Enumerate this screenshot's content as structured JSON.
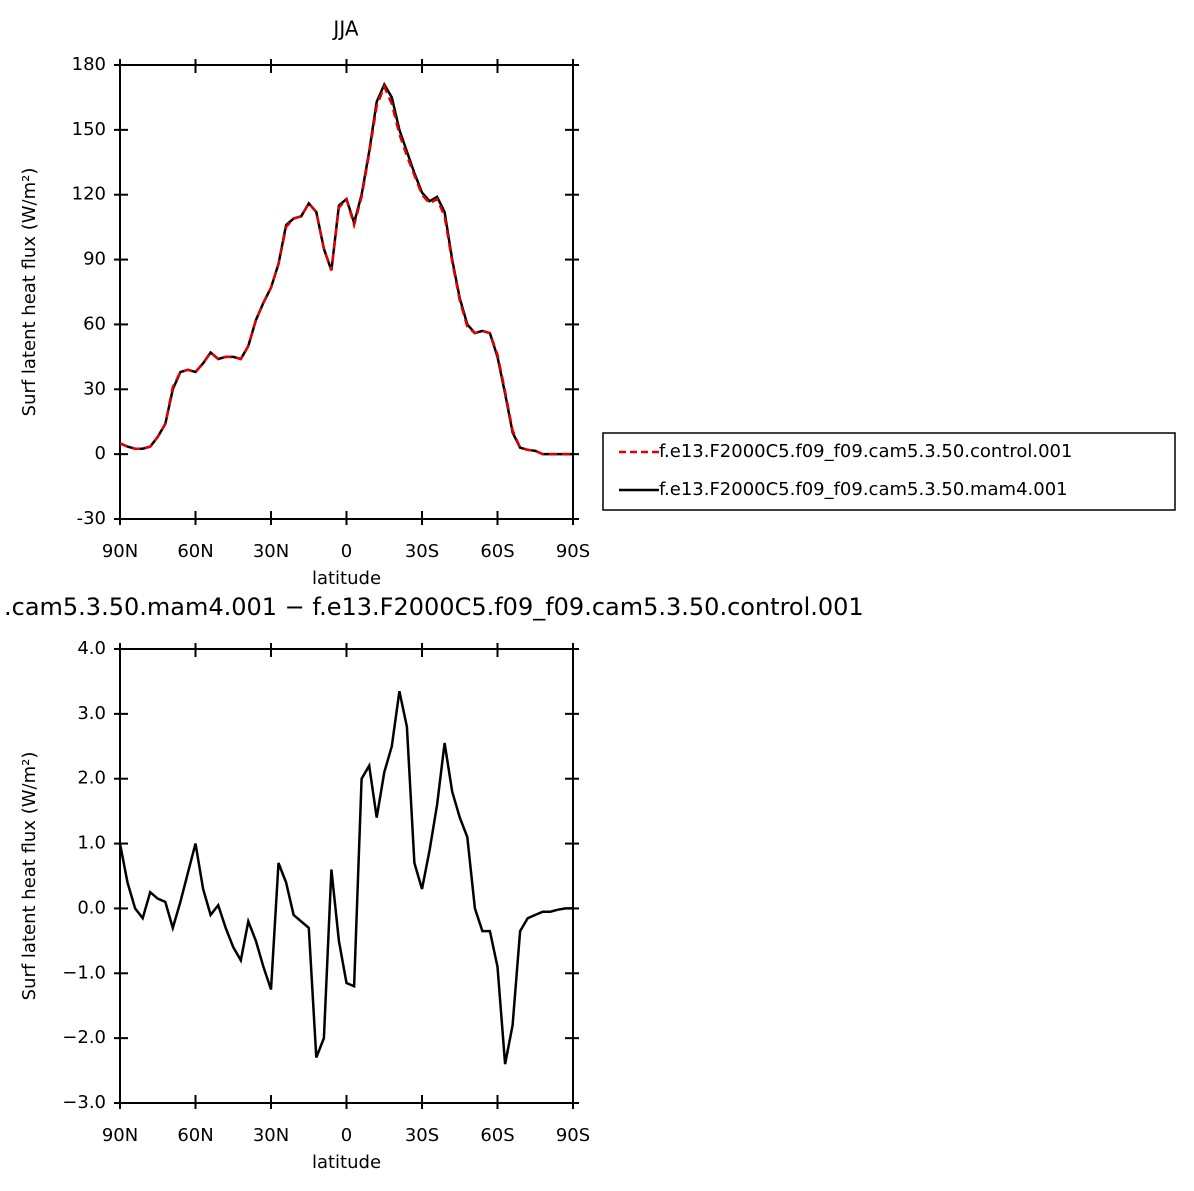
{
  "chart_data": [
    {
      "type": "line",
      "title": "JJA",
      "x_label": "latitude",
      "y_label": "Surf latent heat flux (W/m²)",
      "x": [
        90,
        87,
        84,
        81,
        78,
        75,
        72,
        69,
        66,
        63,
        60,
        57,
        54,
        51,
        48,
        45,
        42,
        39,
        36,
        33,
        30,
        27,
        24,
        21,
        18,
        15,
        12,
        9,
        6,
        3,
        0,
        -3,
        -6,
        -9,
        -12,
        -15,
        -18,
        -21,
        -24,
        -27,
        -30,
        -33,
        -36,
        -39,
        -42,
        -45,
        -48,
        -51,
        -54,
        -57,
        -60,
        -63,
        -66,
        -69,
        -72,
        -75,
        -78,
        -81,
        -84,
        -87,
        -90
      ],
      "series": [
        {
          "name": "f.e13.F2000C5.f09_f09.cam5.3.50.control.001",
          "color": "#e00000",
          "line_style": "dashed",
          "values": [
            5,
            3.5,
            2.5,
            2.5,
            3.5,
            8,
            14,
            31,
            38,
            39,
            38,
            42,
            47,
            44,
            45,
            45,
            44,
            50,
            62,
            70,
            77,
            88,
            105,
            109,
            110,
            116,
            112,
            95,
            85,
            114,
            118,
            106,
            119,
            139,
            161,
            170,
            162,
            148,
            138,
            129,
            120,
            116,
            118,
            110,
            89,
            71,
            59,
            56,
            57,
            56,
            46,
            29,
            11,
            3,
            2,
            1.5,
            0,
            0,
            0,
            0,
            0
          ]
        },
        {
          "name": "f.e13.F2000C5.f09_f09.cam5.3.50.mam4.001",
          "color": "#000000",
          "line_style": "solid",
          "values": [
            5,
            3.5,
            2.5,
            2.5,
            3.5,
            8,
            14,
            30,
            38,
            39,
            38,
            42,
            47,
            44,
            45,
            45,
            44,
            50,
            62,
            70,
            77,
            88,
            106,
            109,
            110,
            116,
            112,
            95,
            85,
            115,
            118,
            107,
            120,
            140,
            163,
            171,
            165,
            150,
            140,
            130,
            121,
            117,
            119,
            112,
            90,
            72,
            60,
            56,
            57,
            56,
            45,
            28,
            10,
            3,
            2,
            1.5,
            0,
            0,
            0,
            0,
            0
          ]
        }
      ],
      "xlim": [
        90,
        -90
      ],
      "xticks": [
        {
          "value": 90,
          "label": "90N"
        },
        {
          "value": 60,
          "label": "60N"
        },
        {
          "value": 30,
          "label": "30N"
        },
        0,
        {
          "value": -30,
          "label": "30S"
        },
        {
          "value": -60,
          "label": "60S"
        },
        {
          "value": -90,
          "label": "90S"
        }
      ],
      "ylim": [
        -30,
        180
      ],
      "yticks": [
        -30,
        0,
        30,
        60,
        90,
        120,
        150,
        180
      ],
      "legend": "right"
    },
    {
      "type": "line",
      "title": ".cam5.3.50.mam4.001 − f.e13.F2000C5.f09_f09.cam5.3.50.control.001",
      "x_label": "latitude",
      "y_label": "Surf latent heat flux (W/m²)",
      "x": [
        90,
        87,
        84,
        81,
        78,
        75,
        72,
        69,
        66,
        63,
        60,
        57,
        54,
        51,
        48,
        45,
        42,
        39,
        36,
        33,
        30,
        27,
        24,
        21,
        18,
        15,
        12,
        9,
        6,
        3,
        0,
        -3,
        -6,
        -9,
        -12,
        -15,
        -18,
        -21,
        -24,
        -27,
        -30,
        -33,
        -36,
        -39,
        -42,
        -45,
        -48,
        -51,
        -54,
        -57,
        -60,
        -63,
        -66,
        -69,
        -72,
        -75,
        -78,
        -81,
        -84,
        -87,
        -90
      ],
      "color": "#000000",
      "values": [
        1.0,
        0.4,
        0.0,
        -0.15,
        0.25,
        0.15,
        0.1,
        -0.3,
        0.1,
        0.55,
        1.0,
        0.3,
        -0.1,
        0.05,
        -0.3,
        -0.6,
        -0.8,
        -0.2,
        -0.5,
        -0.9,
        -1.25,
        0.7,
        0.4,
        -0.1,
        -0.2,
        -0.3,
        -2.3,
        -2.0,
        0.6,
        -0.5,
        -1.15,
        -1.2,
        2.0,
        2.2,
        1.4,
        2.1,
        2.5,
        3.35,
        2.8,
        0.7,
        0.3,
        0.9,
        1.6,
        2.55,
        1.8,
        1.4,
        1.1,
        0.0,
        -0.35,
        -0.35,
        -0.9,
        -2.4,
        -1.8,
        -0.35,
        -0.15,
        -0.1,
        -0.05,
        -0.05,
        -0.02,
        0.0,
        0.0
      ],
      "xlim": [
        90,
        -90
      ],
      "xticks": [
        {
          "value": 90,
          "label": "90N"
        },
        {
          "value": 60,
          "label": "60N"
        },
        {
          "value": 30,
          "label": "30N"
        },
        0,
        {
          "value": -30,
          "label": "30S"
        },
        {
          "value": -60,
          "label": "60S"
        },
        {
          "value": -90,
          "label": "90S"
        }
      ],
      "ylim": [
        -3,
        4
      ],
      "yticks": [
        {
          "value": -3,
          "label": "−3.0"
        },
        {
          "value": -2,
          "label": "−2.0"
        },
        {
          "value": -1,
          "label": "−1.0"
        },
        {
          "value": 0,
          "label": "0.0"
        },
        {
          "value": 1,
          "label": "1.0"
        },
        {
          "value": 2,
          "label": "2.0"
        },
        {
          "value": 3,
          "label": "3.0"
        },
        {
          "value": 4,
          "label": "4.0"
        }
      ]
    }
  ]
}
